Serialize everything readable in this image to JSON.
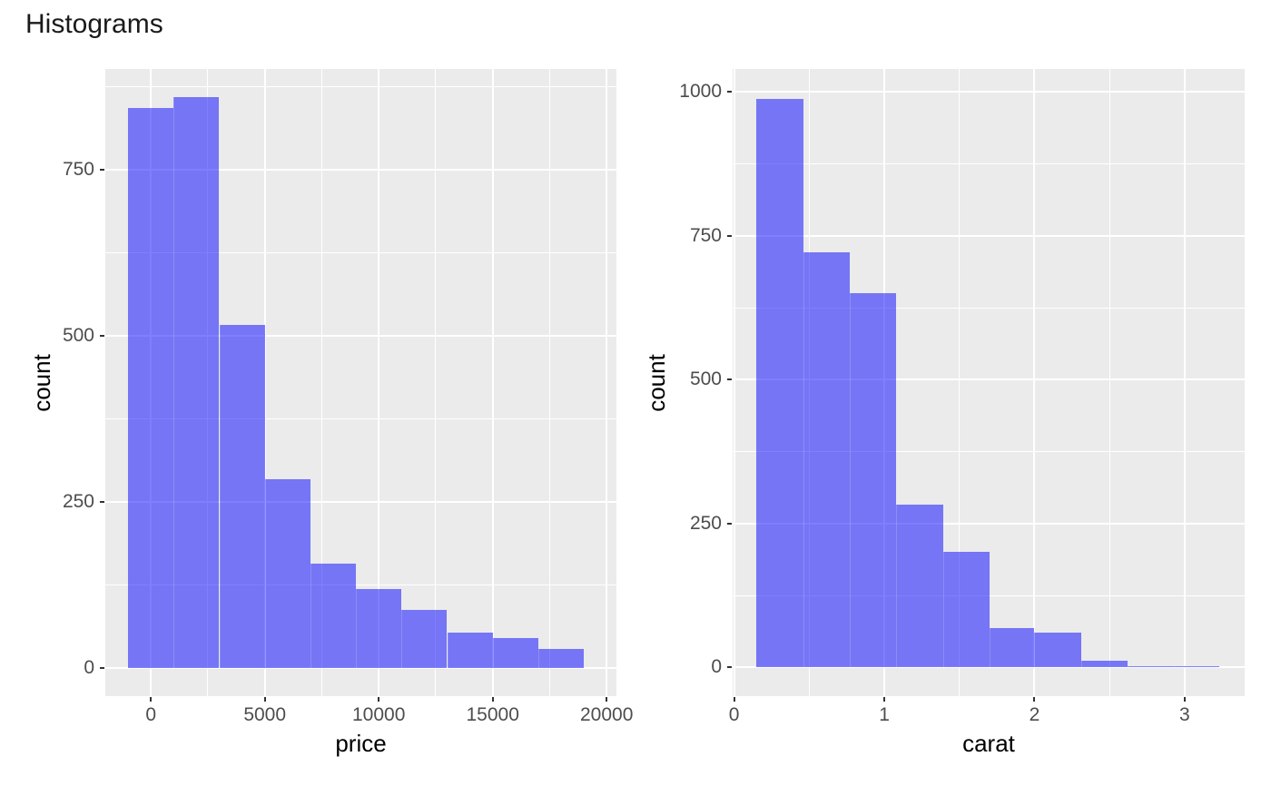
{
  "page": {
    "title": "Histograms",
    "background": "#FFFFFF"
  },
  "theme": {
    "panel_bg": "#EBEBEB",
    "grid_major_color": "#FFFFFF",
    "grid_minor_color": "#FFFFFF",
    "bar_fill": "rgba(0,0,255,0.5)",
    "bar_fill_flat": "#7575F5",
    "tick_label_color": "#4D4D4D",
    "tick_mark_color": "#333333",
    "axis_title_color": "#000000",
    "title_color": "#1A1A1A"
  },
  "chart_data": [
    {
      "type": "bar",
      "subtype": "histogram",
      "xlabel": "price",
      "ylabel": "count",
      "bin_edges": [
        -1000,
        1000,
        3000,
        5000,
        7000,
        9000,
        11000,
        13000,
        15000,
        17000,
        19000
      ],
      "counts": [
        843,
        860,
        516,
        284,
        157,
        118,
        87,
        53,
        44,
        28
      ],
      "x_ticks": [
        0,
        5000,
        10000,
        15000,
        20000
      ],
      "y_ticks": [
        0,
        250,
        500,
        750
      ],
      "xlim": [
        -2000,
        20430
      ],
      "ylim": [
        -43,
        902
      ],
      "grid": "major+minor",
      "legend": "none"
    },
    {
      "type": "bar",
      "subtype": "histogram",
      "xlabel": "carat",
      "ylabel": "count",
      "bin_edges": [
        0.15,
        0.46,
        0.77,
        1.08,
        1.39,
        1.7,
        2.0,
        2.31,
        2.62,
        2.93,
        3.23
      ],
      "counts": [
        988,
        721,
        650,
        283,
        201,
        69,
        61,
        11,
        2,
        2
      ],
      "x_ticks": [
        0,
        1,
        2,
        3
      ],
      "y_ticks": [
        0,
        250,
        500,
        750,
        1000
      ],
      "xlim": [
        -0.01,
        3.4
      ],
      "ylim": [
        -50,
        1040
      ],
      "grid": "major+minor",
      "legend": "none"
    }
  ]
}
